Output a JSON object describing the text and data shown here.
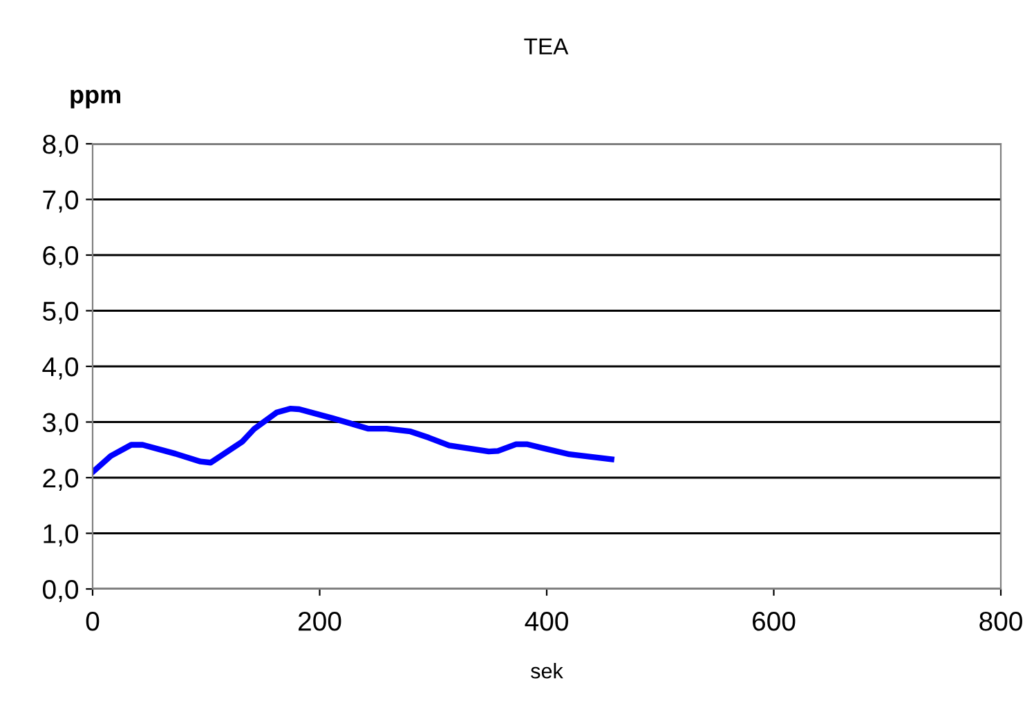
{
  "chart_data": {
    "type": "line",
    "title": "TEA",
    "ylabel": "ppm",
    "xlabel": "sek",
    "series": [
      {
        "color": "#0000ff",
        "x": [
          0,
          16,
          34,
          44,
          73,
          95,
          104,
          132,
          142,
          162,
          174,
          182,
          211,
          243,
          259,
          280,
          296,
          314,
          349,
          357,
          373,
          383,
          397,
          420,
          457
        ],
        "values": [
          2.1,
          2.39,
          2.59,
          2.59,
          2.43,
          2.29,
          2.27,
          2.65,
          2.87,
          3.17,
          3.24,
          3.23,
          3.07,
          2.88,
          2.88,
          2.83,
          2.72,
          2.58,
          2.47,
          2.48,
          2.6,
          2.6,
          2.53,
          2.42,
          2.33
        ]
      }
    ],
    "xlim": [
      0,
      800
    ],
    "xticks": [
      0,
      200,
      400,
      600,
      800
    ],
    "ylim": [
      0,
      8
    ],
    "yticks": [
      {
        "value": 0,
        "label": "0,0"
      },
      {
        "value": 1,
        "label": "1,0"
      },
      {
        "value": 2,
        "label": "2,0"
      },
      {
        "value": 3,
        "label": "3,0"
      },
      {
        "value": 4,
        "label": "4,0"
      },
      {
        "value": 5,
        "label": "5,0"
      },
      {
        "value": 6,
        "label": "6,0"
      },
      {
        "value": 7,
        "label": "7,0"
      },
      {
        "value": 8,
        "label": "8,0"
      }
    ],
    "grid": "y",
    "marker": "none",
    "line_style": "solid",
    "legend": false
  }
}
